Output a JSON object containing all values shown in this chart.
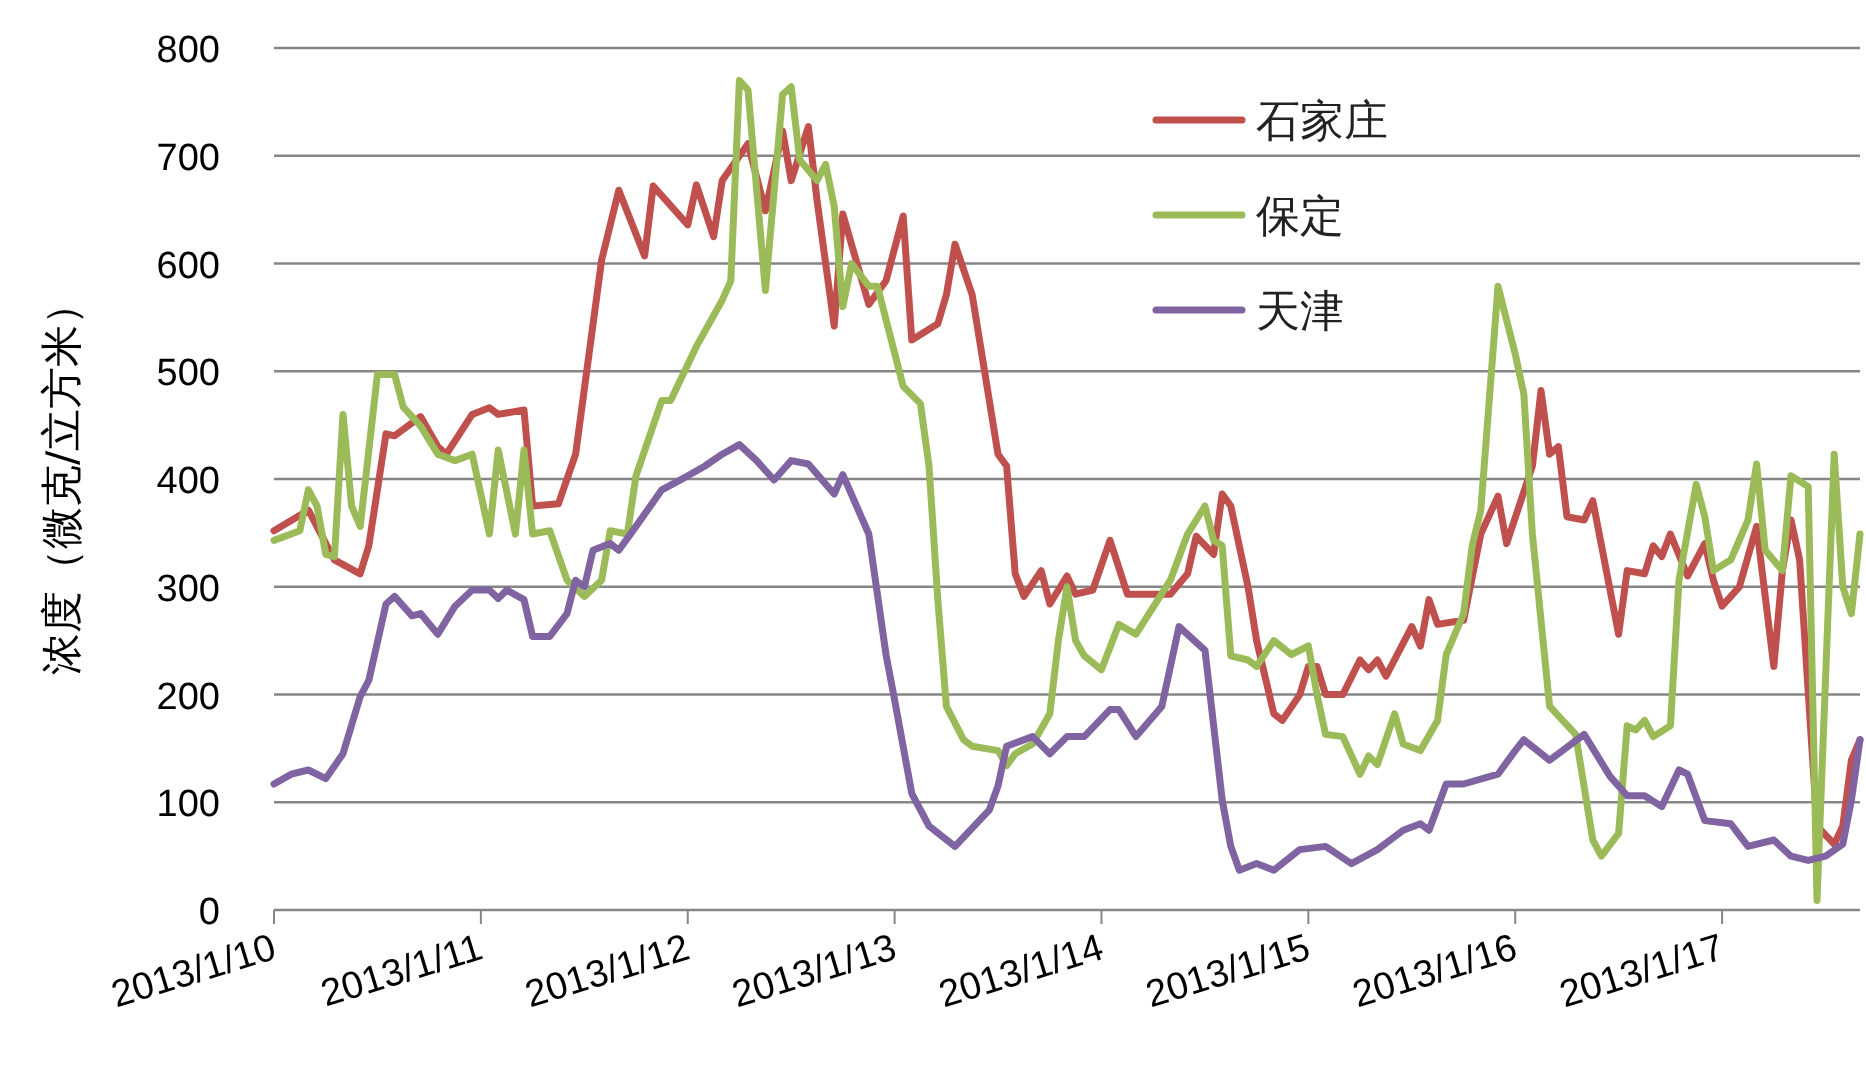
{
  "chart_data": {
    "type": "line",
    "ylabel": "浓度（微克/立方米）",
    "xlim": [
      "2013-01-10T00:00",
      "2013-01-17T16:00"
    ],
    "xticks": [
      {
        "value": "2013-01-10",
        "label": "2013/1/10"
      },
      {
        "value": "2013-01-11",
        "label": "2013/1/11"
      },
      {
        "value": "2013-01-12",
        "label": "2013/1/12"
      },
      {
        "value": "2013-01-13",
        "label": "2013/1/13"
      },
      {
        "value": "2013-01-14",
        "label": "2013/1/14"
      },
      {
        "value": "2013-01-15",
        "label": "2013/1/15"
      },
      {
        "value": "2013-01-16",
        "label": "2013/1/16"
      },
      {
        "value": "2013-01-17",
        "label": "2013/1/17"
      }
    ],
    "ylim": [
      0,
      800
    ],
    "yticks": [
      0,
      100,
      200,
      300,
      400,
      500,
      600,
      700,
      800
    ],
    "grid": "y",
    "legend": "top right",
    "marker": "none",
    "line_style": "solid",
    "series": [
      {
        "name": "石家庄",
        "color": "#c0504d",
        "x": [
          "2013-01-10T00:00",
          "2013-01-10T04:00",
          "2013-01-10T07:00",
          "2013-01-10T10:00",
          "2013-01-10T11:00",
          "2013-01-10T13:00",
          "2013-01-10T14:00",
          "2013-01-10T17:00",
          "2013-01-10T19:00",
          "2013-01-10T20:00",
          "2013-01-10T23:00",
          "2013-01-11T01:00",
          "2013-01-11T02:00",
          "2013-01-11T05:00",
          "2013-01-11T06:00",
          "2013-01-11T09:00",
          "2013-01-11T11:00",
          "2013-01-11T14:00",
          "2013-01-11T16:00",
          "2013-01-11T19:00",
          "2013-01-11T20:00",
          "2013-01-12T00:00",
          "2013-01-12T01:00",
          "2013-01-12T03:00",
          "2013-01-12T04:00",
          "2013-01-12T07:00",
          "2013-01-12T09:00",
          "2013-01-12T11:00",
          "2013-01-12T12:00",
          "2013-01-12T14:00",
          "2013-01-12T15:00",
          "2013-01-12T17:00",
          "2013-01-12T18:00",
          "2013-01-12T21:00",
          "2013-01-12T23:00",
          "2013-01-13T01:00",
          "2013-01-13T02:00",
          "2013-01-13T05:00",
          "2013-01-13T06:00",
          "2013-01-13T07:00",
          "2013-01-13T09:00",
          "2013-01-13T12:00",
          "2013-01-13T13:00",
          "2013-01-13T14:00",
          "2013-01-13T15:00",
          "2013-01-13T17:00",
          "2013-01-13T18:00",
          "2013-01-13T20:00",
          "2013-01-13T21:00",
          "2013-01-13T23:00",
          "2013-01-14T01:00",
          "2013-01-14T03:00",
          "2013-01-14T06:00",
          "2013-01-14T08:00",
          "2013-01-14T10:00",
          "2013-01-14T11:00",
          "2013-01-14T13:00",
          "2013-01-14T14:00",
          "2013-01-14T15:00",
          "2013-01-14T17:00",
          "2013-01-14T18:00",
          "2013-01-14T20:00",
          "2013-01-14T21:00",
          "2013-01-14T23:00",
          "2013-01-15T00:00",
          "2013-01-15T01:00",
          "2013-01-15T02:00",
          "2013-01-15T04:00",
          "2013-01-15T06:00",
          "2013-01-15T07:00",
          "2013-01-15T08:00",
          "2013-01-15T09:00",
          "2013-01-15T12:00",
          "2013-01-15T13:00",
          "2013-01-15T14:00",
          "2013-01-15T15:00",
          "2013-01-15T18:00",
          "2013-01-15T20:00",
          "2013-01-15T22:00",
          "2013-01-15T23:00",
          "2013-01-16T02:00",
          "2013-01-16T03:00",
          "2013-01-16T04:00",
          "2013-01-16T05:00",
          "2013-01-16T06:00",
          "2013-01-16T08:00",
          "2013-01-16T09:00",
          "2013-01-16T12:00",
          "2013-01-16T13:00",
          "2013-01-16T15:00",
          "2013-01-16T16:00",
          "2013-01-16T17:00",
          "2013-01-16T18:00",
          "2013-01-16T20:00",
          "2013-01-16T22:00",
          "2013-01-16T23:00",
          "2013-01-17T00:00",
          "2013-01-17T02:00",
          "2013-01-17T04:00",
          "2013-01-17T06:00",
          "2013-01-17T07:00",
          "2013-01-17T08:00",
          "2013-01-17T09:00",
          "2013-01-17T11:00",
          "2013-01-17T13:00",
          "2013-01-17T14:00",
          "2013-01-17T15:00",
          "2013-01-17T16:00"
        ],
        "values": [
          352,
          371,
          325,
          312,
          338,
          442,
          440,
          458,
          430,
          423,
          460,
          466,
          460,
          464,
          375,
          377,
          423,
          603,
          668,
          607,
          672,
          636,
          673,
          625,
          677,
          711,
          649,
          723,
          677,
          727,
          659,
          542,
          646,
          562,
          584,
          644,
          529,
          544,
          571,
          618,
          571,
          423,
          412,
          312,
          291,
          315,
          284,
          310,
          293,
          297,
          343,
          293,
          293,
          293,
          312,
          347,
          330,
          386,
          375,
          300,
          250,
          182,
          176,
          200,
          226,
          226,
          200,
          200,
          232,
          223,
          232,
          217,
          263,
          245,
          288,
          265,
          269,
          349,
          384,
          340,
          412,
          482,
          423,
          430,
          365,
          362,
          380,
          256,
          315,
          312,
          338,
          328,
          349,
          310,
          340,
          306,
          282,
          300,
          356,
          226,
          315,
          362,
          325,
          78,
          61,
          78,
          139,
          158
        ]
      },
      {
        "name": "保定",
        "color": "#9bbb59",
        "x": [
          "2013-01-10T00:00",
          "2013-01-10T03:00",
          "2013-01-10T04:00",
          "2013-01-10T05:00",
          "2013-01-10T06:00",
          "2013-01-10T07:00",
          "2013-01-10T08:00",
          "2013-01-10T09:00",
          "2013-01-10T10:00",
          "2013-01-10T12:00",
          "2013-01-10T14:00",
          "2013-01-10T15:00",
          "2013-01-10T17:00",
          "2013-01-10T19:00",
          "2013-01-10T21:00",
          "2013-01-10T23:00",
          "2013-01-11T01:00",
          "2013-01-11T02:00",
          "2013-01-11T04:00",
          "2013-01-11T05:00",
          "2013-01-11T06:00",
          "2013-01-11T08:00",
          "2013-01-11T10:00",
          "2013-01-11T12:00",
          "2013-01-11T14:00",
          "2013-01-11T15:00",
          "2013-01-11T17:00",
          "2013-01-11T18:00",
          "2013-01-11T21:00",
          "2013-01-11T22:00",
          "2013-01-12T01:00",
          "2013-01-12T04:00",
          "2013-01-12T05:00",
          "2013-01-12T06:00",
          "2013-01-12T07:00",
          "2013-01-12T09:00",
          "2013-01-12T11:00",
          "2013-01-12T12:00",
          "2013-01-12T13:00",
          "2013-01-12T15:00",
          "2013-01-12T16:00",
          "2013-01-12T17:00",
          "2013-01-12T18:00",
          "2013-01-12T19:00",
          "2013-01-12T21:00",
          "2013-01-12T22:00",
          "2013-01-13T01:00",
          "2013-01-13T03:00",
          "2013-01-13T04:00",
          "2013-01-13T05:00",
          "2013-01-13T06:00",
          "2013-01-13T08:00",
          "2013-01-13T09:00",
          "2013-01-13T12:00",
          "2013-01-13T13:00",
          "2013-01-13T14:00",
          "2013-01-13T16:00",
          "2013-01-13T18:00",
          "2013-01-13T19:00",
          "2013-01-13T20:00",
          "2013-01-13T21:00",
          "2013-01-13T22:00",
          "2013-01-14T00:00",
          "2013-01-14T02:00",
          "2013-01-14T04:00",
          "2013-01-14T08:00",
          "2013-01-14T10:00",
          "2013-01-14T12:00",
          "2013-01-14T13:00",
          "2013-01-14T14:00",
          "2013-01-14T15:00",
          "2013-01-14T17:00",
          "2013-01-14T18:00",
          "2013-01-14T20:00",
          "2013-01-14T22:00",
          "2013-01-15T00:00",
          "2013-01-15T01:00",
          "2013-01-15T02:00",
          "2013-01-15T04:00",
          "2013-01-15T06:00",
          "2013-01-15T07:00",
          "2013-01-15T08:00",
          "2013-01-15T10:00",
          "2013-01-15T11:00",
          "2013-01-15T13:00",
          "2013-01-15T15:00",
          "2013-01-15T16:00",
          "2013-01-15T18:00",
          "2013-01-15T19:00",
          "2013-01-15T20:00",
          "2013-01-15T22:00",
          "2013-01-16T00:00",
          "2013-01-16T01:00",
          "2013-01-16T02:00",
          "2013-01-16T04:00",
          "2013-01-16T07:00",
          "2013-01-16T09:00",
          "2013-01-16T10:00",
          "2013-01-16T12:00",
          "2013-01-16T13:00",
          "2013-01-16T14:00",
          "2013-01-16T15:00",
          "2013-01-16T16:00",
          "2013-01-16T18:00",
          "2013-01-16T19:00",
          "2013-01-16T21:00",
          "2013-01-16T22:00",
          "2013-01-16T23:00",
          "2013-01-17T01:00",
          "2013-01-17T03:00",
          "2013-01-17T04:00",
          "2013-01-17T05:00",
          "2013-01-17T07:00",
          "2013-01-17T08:00",
          "2013-01-17T10:00",
          "2013-01-17T11:00",
          "2013-01-17T13:00",
          "2013-01-17T14:00",
          "2013-01-17T15:00",
          "2013-01-17T16:00"
        ],
        "values": [
          343,
          352,
          390,
          375,
          330,
          328,
          460,
          375,
          356,
          497,
          497,
          467,
          449,
          423,
          417,
          423,
          349,
          427,
          349,
          427,
          349,
          352,
          306,
          291,
          306,
          352,
          349,
          403,
          473,
          473,
          523,
          566,
          584,
          770,
          761,
          575,
          757,
          764,
          696,
          677,
          692,
          653,
          560,
          600,
          579,
          579,
          486,
          470,
          412,
          288,
          189,
          158,
          152,
          148,
          134,
          145,
          154,
          182,
          250,
          300,
          250,
          236,
          223,
          265,
          256,
          306,
          349,
          375,
          343,
          338,
          236,
          232,
          226,
          250,
          237,
          245,
          200,
          163,
          161,
          126,
          143,
          135,
          182,
          154,
          148,
          176,
          237,
          275,
          338,
          371,
          579,
          516,
          479,
          349,
          189,
          163,
          65,
          50,
          71,
          171,
          167,
          176,
          161,
          171,
          306,
          395,
          365,
          315,
          325,
          362,
          414,
          334,
          315,
          403,
          393,
          9,
          423,
          300,
          275,
          349
        ]
      },
      {
        "name": "天津",
        "color": "#8064a2",
        "x": [
          "2013-01-10T00:00",
          "2013-01-10T02:00",
          "2013-01-10T04:00",
          "2013-01-10T06:00",
          "2013-01-10T08:00",
          "2013-01-10T10:00",
          "2013-01-10T11:00",
          "2013-01-10T13:00",
          "2013-01-10T14:00",
          "2013-01-10T16:00",
          "2013-01-10T17:00",
          "2013-01-10T19:00",
          "2013-01-10T21:00",
          "2013-01-10T23:00",
          "2013-01-11T01:00",
          "2013-01-11T02:00",
          "2013-01-11T03:00",
          "2013-01-11T05:00",
          "2013-01-11T06:00",
          "2013-01-11T08:00",
          "2013-01-11T10:00",
          "2013-01-11T11:00",
          "2013-01-11T12:00",
          "2013-01-11T13:00",
          "2013-01-11T15:00",
          "2013-01-11T16:00",
          "2013-01-11T18:00",
          "2013-01-11T21:00",
          "2013-01-12T00:00",
          "2013-01-12T02:00",
          "2013-01-12T04:00",
          "2013-01-12T06:00",
          "2013-01-12T08:00",
          "2013-01-12T10:00",
          "2013-01-12T12:00",
          "2013-01-12T14:00",
          "2013-01-12T17:00",
          "2013-01-12T18:00",
          "2013-01-12T21:00",
          "2013-01-12T23:00",
          "2013-01-13T00:00",
          "2013-01-13T02:00",
          "2013-01-13T04:00",
          "2013-01-13T07:00",
          "2013-01-13T11:00",
          "2013-01-13T12:00",
          "2013-01-13T13:00",
          "2013-01-13T16:00",
          "2013-01-13T18:00",
          "2013-01-13T20:00",
          "2013-01-13T22:00",
          "2013-01-14T01:00",
          "2013-01-14T02:00",
          "2013-01-14T04:00",
          "2013-01-14T07:00",
          "2013-01-14T09:00",
          "2013-01-14T12:00",
          "2013-01-14T14:00",
          "2013-01-14T15:00",
          "2013-01-14T16:00",
          "2013-01-14T18:00",
          "2013-01-14T20:00",
          "2013-01-14T23:00",
          "2013-01-15T02:00",
          "2013-01-15T05:00",
          "2013-01-15T08:00",
          "2013-01-15T11:00",
          "2013-01-15T13:00",
          "2013-01-15T14:00",
          "2013-01-15T16:00",
          "2013-01-15T18:00",
          "2013-01-15T22:00",
          "2013-01-16T00:00",
          "2013-01-16T01:00",
          "2013-01-16T04:00",
          "2013-01-16T08:00",
          "2013-01-16T11:00",
          "2013-01-16T13:00",
          "2013-01-16T15:00",
          "2013-01-16T17:00",
          "2013-01-16T19:00",
          "2013-01-16T20:00",
          "2013-01-16T22:00",
          "2013-01-17T01:00",
          "2013-01-17T03:00",
          "2013-01-17T06:00",
          "2013-01-17T08:00",
          "2013-01-17T10:00",
          "2013-01-17T12:00",
          "2013-01-17T14:00",
          "2013-01-17T15:00",
          "2013-01-17T16:00"
        ],
        "values": [
          117,
          126,
          130,
          122,
          145,
          198,
          213,
          284,
          291,
          273,
          275,
          256,
          282,
          297,
          297,
          289,
          297,
          288,
          254,
          254,
          275,
          306,
          300,
          334,
          340,
          334,
          356,
          390,
          403,
          412,
          423,
          432,
          417,
          399,
          417,
          414,
          386,
          404,
          349,
          237,
          195,
          108,
          78,
          59,
          93,
          115,
          152,
          161,
          145,
          161,
          161,
          186,
          186,
          161,
          189,
          263,
          241,
          102,
          59,
          37,
          43,
          37,
          56,
          59,
          43,
          56,
          74,
          80,
          74,
          117,
          117,
          126,
          148,
          158,
          139,
          163,
          124,
          106,
          106,
          96,
          130,
          126,
          83,
          80,
          59,
          65,
          50,
          46,
          50,
          61,
          102,
          158
        ]
      }
    ]
  }
}
